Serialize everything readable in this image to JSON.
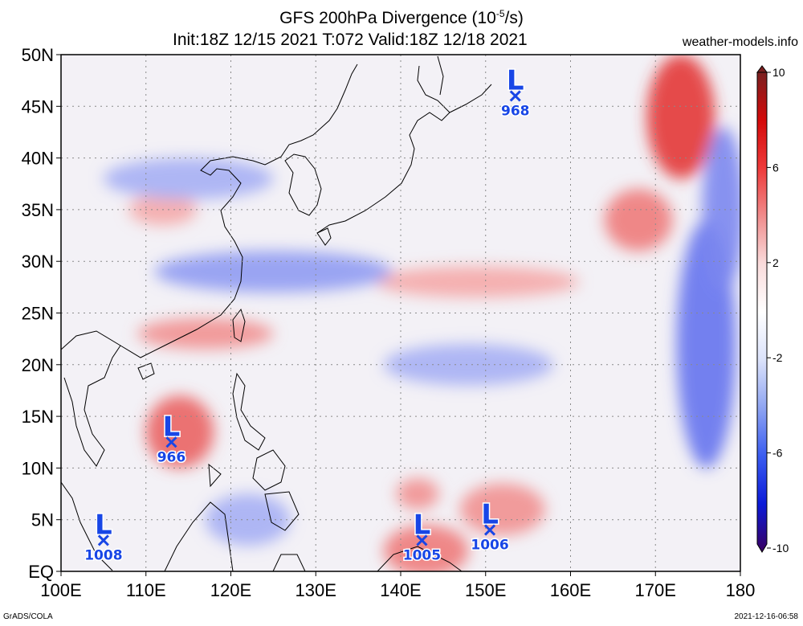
{
  "header": {
    "title_line1": "GFS 200hPa Divergence (10",
    "title_line1_exp": "-5",
    "title_line1_end": "/s)",
    "title_line2": "Init:18Z 12/15 2021 T:072 Valid:18Z 12/18 2021",
    "site": "weather-models.info"
  },
  "footer": {
    "left": "GrADS/COLA",
    "right": "2021-12-16-06:58"
  },
  "map": {
    "lon_range": [
      100,
      180
    ],
    "lat_range": [
      0,
      50
    ],
    "lat_ticks": [
      {
        "value": 50,
        "label": "50N"
      },
      {
        "value": 45,
        "label": "45N"
      },
      {
        "value": 40,
        "label": "40N"
      },
      {
        "value": 35,
        "label": "35N"
      },
      {
        "value": 30,
        "label": "30N"
      },
      {
        "value": 25,
        "label": "25N"
      },
      {
        "value": 20,
        "label": "20N"
      },
      {
        "value": 15,
        "label": "15N"
      },
      {
        "value": 10,
        "label": "10N"
      },
      {
        "value": 5,
        "label": "5N"
      },
      {
        "value": 0,
        "label": "EQ"
      }
    ],
    "lon_ticks": [
      {
        "value": 100,
        "label": "100E"
      },
      {
        "value": 110,
        "label": "110E"
      },
      {
        "value": 120,
        "label": "120E"
      },
      {
        "value": 130,
        "label": "130E"
      },
      {
        "value": 140,
        "label": "140E"
      },
      {
        "value": 150,
        "label": "150E"
      },
      {
        "value": 160,
        "label": "160E"
      },
      {
        "value": 170,
        "label": "170E"
      },
      {
        "value": 180,
        "label": "180"
      }
    ],
    "gridlines": "dotted",
    "features": [
      {
        "type": "divergence",
        "lon": 114,
        "lat": 13.5,
        "rx": 4,
        "ry": 3.5,
        "value": 6
      },
      {
        "type": "divergence",
        "lon": 173,
        "lat": 44,
        "rx": 4,
        "ry": 6,
        "value": 8
      },
      {
        "type": "divergence",
        "lon": 168,
        "lat": 34,
        "rx": 4,
        "ry": 3,
        "value": 5
      },
      {
        "type": "divergence",
        "lon": 143,
        "lat": 2,
        "rx": 5,
        "ry": 2.5,
        "value": 5
      },
      {
        "type": "divergence",
        "lon": 152,
        "lat": 6,
        "rx": 5,
        "ry": 2.5,
        "value": 4
      },
      {
        "type": "divergence",
        "lon": 142,
        "lat": 7.5,
        "rx": 2.5,
        "ry": 1.5,
        "value": 4
      },
      {
        "type": "divergence",
        "lon": 117,
        "lat": 23,
        "rx": 8,
        "ry": 1.5,
        "value": 4
      },
      {
        "type": "divergence",
        "lon": 112,
        "lat": 35,
        "rx": 4,
        "ry": 1.5,
        "value": 3
      },
      {
        "type": "divergence",
        "lon": 149,
        "lat": 28,
        "rx": 12,
        "ry": 1.5,
        "value": 3
      },
      {
        "type": "convergence",
        "lon": 176,
        "lat": 22,
        "rx": 3.5,
        "ry": 12,
        "value": -6
      },
      {
        "type": "convergence",
        "lon": 178,
        "lat": 35,
        "rx": 2.5,
        "ry": 8,
        "value": -5
      },
      {
        "type": "convergence",
        "lon": 125,
        "lat": 29,
        "rx": 14,
        "ry": 2,
        "value": -4
      },
      {
        "type": "convergence",
        "lon": 115,
        "lat": 38,
        "rx": 10,
        "ry": 2,
        "value": -3
      },
      {
        "type": "convergence",
        "lon": 148,
        "lat": 20,
        "rx": 10,
        "ry": 2,
        "value": -3
      },
      {
        "type": "convergence",
        "lon": 122,
        "lat": 5,
        "rx": 5,
        "ry": 2.5,
        "value": -3
      }
    ],
    "lows": [
      {
        "lon": 113,
        "lat": 12.5,
        "pressure": "966"
      },
      {
        "lon": 153.5,
        "lat": 46,
        "pressure": "968"
      },
      {
        "lon": 105,
        "lat": 3,
        "pressure": "1008"
      },
      {
        "lon": 142.5,
        "lat": 3,
        "pressure": "1005"
      },
      {
        "lon": 150.5,
        "lat": 4,
        "pressure": "1006"
      }
    ],
    "low_symbol": "L",
    "low_color": "#1846e6"
  },
  "colorbar": {
    "min": -10,
    "max": 10,
    "tick_values": [
      10,
      6,
      2,
      -2,
      -6,
      -10
    ],
    "tick_labels": [
      "10",
      "6",
      "2",
      "-2",
      "-6",
      "-10"
    ],
    "colors": [
      "#3a0060",
      "#0b1ad8",
      "#3a5cf0",
      "#8ea4f2",
      "#dbe2fa",
      "#ffffff",
      "#fadcdc",
      "#f08c8c",
      "#ee3a3a",
      "#d40a0a",
      "#7a2020"
    ]
  }
}
